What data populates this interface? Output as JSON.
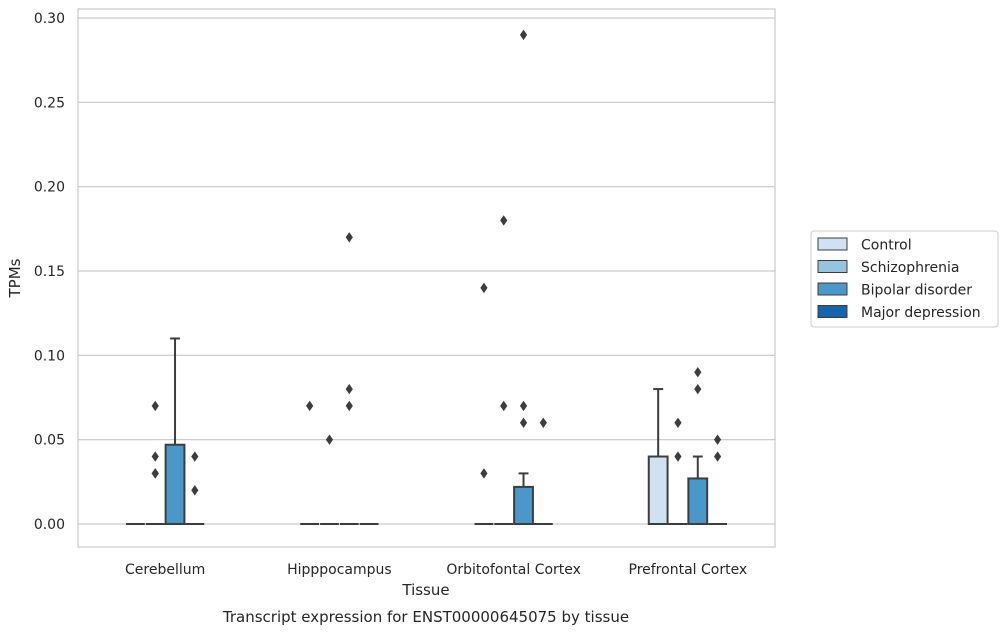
{
  "caption": "Transcript expression for ENST00000645075 by tissue",
  "chart_data": {
    "type": "box",
    "xlabel": "Tissue",
    "ylabel": "TPMs",
    "ylim": [
      -0.014,
      0.305
    ],
    "yticks": [
      0.0,
      0.05,
      0.1,
      0.15,
      0.2,
      0.25,
      0.3
    ],
    "ytick_labels": [
      "0.00",
      "0.05",
      "0.10",
      "0.15",
      "0.20",
      "0.25",
      "0.30"
    ],
    "grid": true,
    "legend_placement": "center-right-outside",
    "categories": [
      "Cerebellum",
      "Hipppocampus",
      "Orbitofontal Cortex",
      "Prefrontal Cortex"
    ],
    "series": [
      {
        "name": "Control",
        "color": "#d0e1f2"
      },
      {
        "name": "Schizophrenia",
        "color": "#94c4df"
      },
      {
        "name": "Bipolar disorder",
        "color": "#4a98c9"
      },
      {
        "name": "Major depression",
        "color": "#1764ab"
      }
    ],
    "boxes": [
      {
        "category": 0,
        "series": 0,
        "q1": 0,
        "median": 0,
        "q3": 0,
        "whisker_low": 0,
        "whisker_high": 0,
        "outliers": []
      },
      {
        "category": 0,
        "series": 1,
        "q1": 0,
        "median": 0,
        "q3": 0,
        "whisker_low": 0,
        "whisker_high": 0,
        "outliers": [
          0.03,
          0.07,
          0.04,
          0.03
        ]
      },
      {
        "category": 0,
        "series": 2,
        "q1": 0,
        "median": 0,
        "q3": 0.047,
        "whisker_low": 0,
        "whisker_high": 0.11,
        "outliers": []
      },
      {
        "category": 0,
        "series": 3,
        "q1": 0,
        "median": 0,
        "q3": 0,
        "whisker_low": 0,
        "whisker_high": 0,
        "outliers": [
          0.04,
          0.02
        ]
      },
      {
        "category": 1,
        "series": 0,
        "q1": 0,
        "median": 0,
        "q3": 0,
        "whisker_low": 0,
        "whisker_high": 0,
        "outliers": [
          0.07
        ]
      },
      {
        "category": 1,
        "series": 1,
        "q1": 0,
        "median": 0,
        "q3": 0,
        "whisker_low": 0,
        "whisker_high": 0,
        "outliers": [
          0.05
        ]
      },
      {
        "category": 1,
        "series": 2,
        "q1": 0,
        "median": 0,
        "q3": 0,
        "whisker_low": 0,
        "whisker_high": 0,
        "outliers": [
          0.17,
          0.08,
          0.07
        ]
      },
      {
        "category": 1,
        "series": 3,
        "q1": 0,
        "median": 0,
        "q3": 0,
        "whisker_low": 0,
        "whisker_high": 0,
        "outliers": []
      },
      {
        "category": 2,
        "series": 0,
        "q1": 0,
        "median": 0,
        "q3": 0,
        "whisker_low": 0,
        "whisker_high": 0,
        "outliers": [
          0.14,
          0.03
        ]
      },
      {
        "category": 2,
        "series": 1,
        "q1": 0,
        "median": 0,
        "q3": 0,
        "whisker_low": 0,
        "whisker_high": 0,
        "outliers": [
          0.18,
          0.07
        ]
      },
      {
        "category": 2,
        "series": 2,
        "q1": 0,
        "median": 0,
        "q3": 0.022,
        "whisker_low": 0,
        "whisker_high": 0.03,
        "outliers": [
          0.29,
          0.07,
          0.06
        ]
      },
      {
        "category": 2,
        "series": 3,
        "q1": 0,
        "median": 0,
        "q3": 0,
        "whisker_low": 0,
        "whisker_high": 0,
        "outliers": [
          0.06
        ]
      },
      {
        "category": 3,
        "series": 0,
        "q1": 0,
        "median": 0,
        "q3": 0.04,
        "whisker_low": 0,
        "whisker_high": 0.08,
        "outliers": []
      },
      {
        "category": 3,
        "series": 1,
        "q1": 0,
        "median": 0,
        "q3": 0,
        "whisker_low": 0,
        "whisker_high": 0,
        "outliers": [
          0.06,
          0.04
        ]
      },
      {
        "category": 3,
        "series": 2,
        "q1": 0,
        "median": 0,
        "q3": 0.027,
        "whisker_low": 0,
        "whisker_high": 0.04,
        "outliers": [
          0.09,
          0.08
        ]
      },
      {
        "category": 3,
        "series": 3,
        "q1": 0,
        "median": 0,
        "q3": 0,
        "whisker_low": 0,
        "whisker_high": 0,
        "outliers": [
          0.05,
          0.04
        ]
      }
    ]
  }
}
